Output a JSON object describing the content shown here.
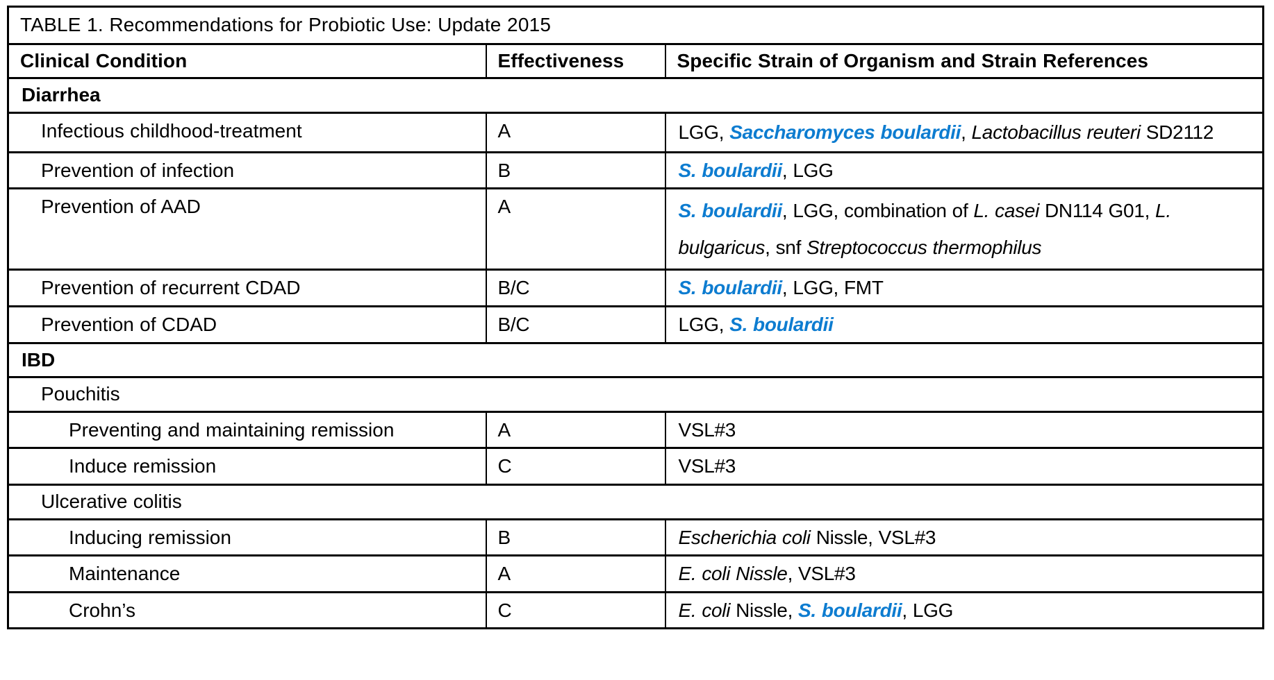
{
  "accent_blue": "#0d7cd0",
  "text_color": "#000000",
  "border_color": "#000000",
  "table": {
    "title": "TABLE 1. Recommendations for Probiotic Use: Update 2015",
    "columns": [
      "Clinical Condition",
      "Effectiveness",
      "Specific Strain of Organism and Strain References"
    ],
    "rows": [
      {
        "type": "section",
        "indent": 0,
        "label": "Diarrhea"
      },
      {
        "type": "data",
        "indent": 1,
        "condition": "Infectious childhood-treatment",
        "effectiveness": "A",
        "strain_style": "justify tight",
        "strains": [
          {
            "t": "LGG, ",
            "s": "plain"
          },
          {
            "t": "Saccharomyces boulardii",
            "s": "blue"
          },
          {
            "t": ", ",
            "s": "plain"
          },
          {
            "t": "Lactobacillus reuteri",
            "s": "italic"
          },
          {
            "t": " SD2112",
            "s": "plain"
          }
        ]
      },
      {
        "type": "data",
        "indent": 1,
        "condition": "Prevention of infection",
        "effectiveness": "B",
        "strain_style": "",
        "strains": [
          {
            "t": "S. boulardii",
            "s": "blue"
          },
          {
            "t": ", LGG",
            "s": "plain"
          }
        ]
      },
      {
        "type": "data",
        "indent": 1,
        "condition": "Prevention of AAD",
        "effectiveness": "A",
        "strain_style": "wide",
        "strains": [
          {
            "t": "S. boulardii",
            "s": "blue"
          },
          {
            "t": ", LGG, combination of ",
            "s": "plain"
          },
          {
            "t": "L. casei",
            "s": "italic"
          },
          {
            "t": " DN114 G01, ",
            "s": "plain"
          },
          {
            "t": "L. bulgaricus",
            "s": "italic"
          },
          {
            "t": ", snf ",
            "s": "plain"
          },
          {
            "t": "Streptococcus thermophilus",
            "s": "italic"
          }
        ]
      },
      {
        "type": "data",
        "indent": 1,
        "condition": "Prevention of recurrent CDAD",
        "effectiveness": "B/C",
        "strain_style": "",
        "strains": [
          {
            "t": "S. boulardii",
            "s": "blue"
          },
          {
            "t": ", LGG, FMT",
            "s": "plain"
          }
        ]
      },
      {
        "type": "data",
        "indent": 1,
        "condition": "Prevention of CDAD",
        "effectiveness": "B/C",
        "strain_style": "",
        "strains": [
          {
            "t": "LGG, ",
            "s": "plain"
          },
          {
            "t": "S. boulardii",
            "s": "blue"
          }
        ]
      },
      {
        "type": "section",
        "indent": 0,
        "label": "IBD"
      },
      {
        "type": "subsection",
        "indent": 1,
        "label": "Pouchitis"
      },
      {
        "type": "data",
        "indent": 2,
        "condition": "Preventing and maintaining remission",
        "effectiveness": "A",
        "strain_style": "",
        "strains": [
          {
            "t": "VSL#3",
            "s": "plain"
          }
        ]
      },
      {
        "type": "data",
        "indent": 2,
        "condition": "Induce remission",
        "effectiveness": "C",
        "strain_style": "",
        "strains": [
          {
            "t": "VSL#3",
            "s": "plain"
          }
        ]
      },
      {
        "type": "subsection",
        "indent": 1,
        "label": "Ulcerative colitis"
      },
      {
        "type": "data",
        "indent": 2,
        "condition": "Inducing remission",
        "effectiveness": "B",
        "strain_style": "",
        "strains": [
          {
            "t": "Escherichia coli",
            "s": "italic"
          },
          {
            "t": " Nissle, VSL#3",
            "s": "plain"
          }
        ]
      },
      {
        "type": "data",
        "indent": 2,
        "condition": "Maintenance",
        "effectiveness": "A",
        "strain_style": "",
        "strains": [
          {
            "t": "E. coli Nissle",
            "s": "italic"
          },
          {
            "t": ", VSL#3",
            "s": "plain"
          }
        ]
      },
      {
        "type": "data",
        "indent": 2,
        "condition": "Crohn’s",
        "effectiveness": "C",
        "strain_style": "",
        "strains": [
          {
            "t": "E. coli",
            "s": "italic"
          },
          {
            "t": " Nissle, ",
            "s": "plain"
          },
          {
            "t": "S. boulardii",
            "s": "blue"
          },
          {
            "t": ", LGG",
            "s": "plain"
          }
        ]
      }
    ]
  }
}
